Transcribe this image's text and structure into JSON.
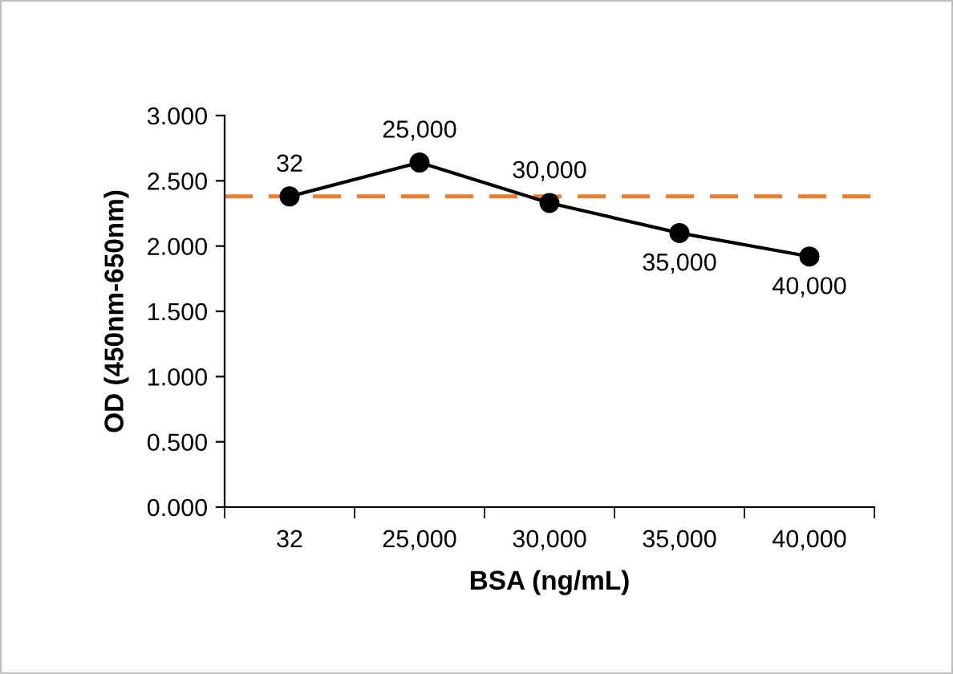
{
  "chart_data": {
    "type": "line",
    "xlabel": "BSA (ng/mL)",
    "ylabel": "OD (450nm-650nm)",
    "categories": [
      "32",
      "25,000",
      "30,000",
      "35,000",
      "40,000"
    ],
    "series": [
      {
        "color": "#000000",
        "values": [
          2.38,
          2.64,
          2.33,
          2.1,
          1.92
        ]
      }
    ],
    "marker": "circle",
    "line_style": "solid",
    "grid": false,
    "legend": false,
    "ylim": [
      0,
      3
    ],
    "yticks": [
      {
        "value": 0,
        "label": "0.000"
      },
      {
        "value": 0.5,
        "label": "0.500"
      },
      {
        "value": 1,
        "label": "1.000"
      },
      {
        "value": 1.5,
        "label": "1.500"
      },
      {
        "value": 2,
        "label": "2.000"
      },
      {
        "value": 2.5,
        "label": "2.500"
      },
      {
        "value": 3,
        "label": "3.000"
      }
    ],
    "ref_lines": [
      {
        "axis": "y",
        "value": 2.38,
        "color": "#ed7d31",
        "line_style": "dashed"
      }
    ],
    "annotations": [
      {
        "text": "32",
        "x": "32",
        "y": 2.38
      },
      {
        "text": "25,000",
        "x": "25,000",
        "y": 2.64
      },
      {
        "text": "30,000",
        "x": "30,000",
        "y": 2.33
      },
      {
        "text": "35,000",
        "x": "35,000",
        "y": 2.1
      },
      {
        "text": "40,000",
        "x": "40,000",
        "y": 1.92
      }
    ]
  }
}
